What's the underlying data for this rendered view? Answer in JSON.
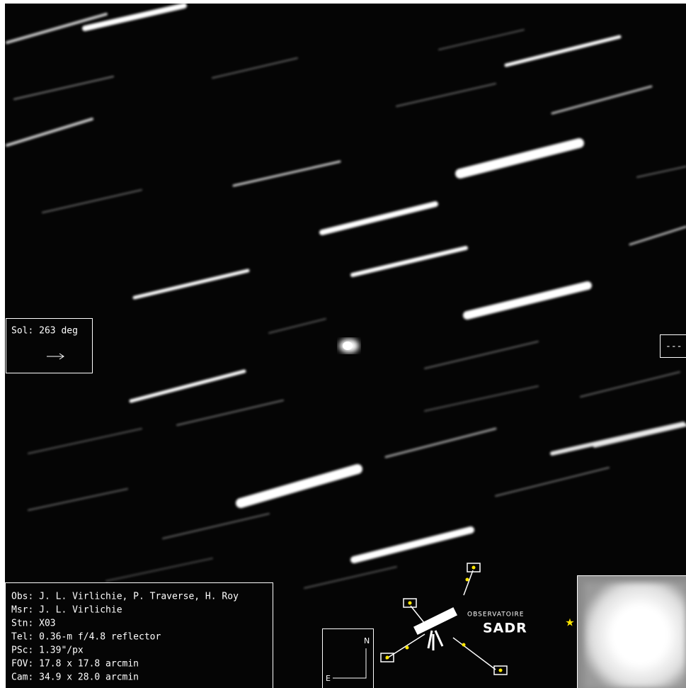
{
  "sol_box": {
    "label": "Sol: 263 deg"
  },
  "edge_box": {
    "label": "---"
  },
  "info": {
    "lines": [
      "Obs: J. L. Virlichie, P. Traverse, H. Roy",
      "Msr: J. L. Virlichie",
      "Stn: X03",
      "Tel: 0.36-m f/4.8 reflector",
      "PSc: 1.39\"/px",
      "FOV: 17.8 x 17.8 arcmin",
      "Cam: 34.9 x 28.0 arcmin"
    ]
  },
  "compass": {
    "north": "N",
    "east": "E"
  },
  "logo": {
    "top": "OBSERVATOIRE",
    "name": "SADR"
  }
}
